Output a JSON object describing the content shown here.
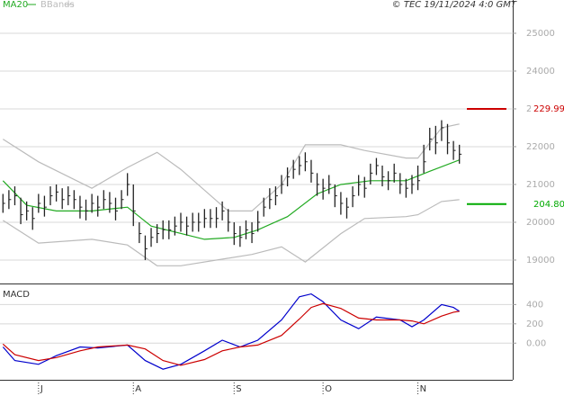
{
  "chart_data": [
    {
      "type": "hlc",
      "note": "© TEC 19/11/2024 4:0 GMT",
      "xlim": [
        -0.5,
        86
      ],
      "ylim": [
        18380,
        25880
      ],
      "yticks": [
        19000,
        20000,
        21000,
        22000,
        23000,
        24000,
        25000
      ],
      "grid": true,
      "bar_color": "#222222",
      "high": [
        20750,
        20850,
        20950,
        20650,
        20550,
        20400,
        20750,
        20700,
        20950,
        21000,
        20900,
        20950,
        20850,
        20700,
        20600,
        20750,
        20700,
        20850,
        20800,
        20650,
        20850,
        21300,
        21000,
        20000,
        19650,
        19850,
        19950,
        20050,
        20050,
        20150,
        20250,
        20150,
        20250,
        20250,
        20350,
        20350,
        20400,
        20550,
        20350,
        20000,
        19900,
        20050,
        20000,
        20300,
        20650,
        20900,
        20950,
        21250,
        21450,
        21650,
        21750,
        21850,
        21650,
        21300,
        21150,
        21250,
        21000,
        20800,
        20650,
        20950,
        21250,
        21200,
        21550,
        21700,
        21500,
        21350,
        21550,
        21300,
        21150,
        21250,
        21500,
        22050,
        22500,
        22550,
        22700,
        22600,
        22150,
        22050
      ],
      "low": [
        20250,
        20350,
        20450,
        19950,
        20050,
        19800,
        20250,
        20150,
        20450,
        20550,
        20350,
        20450,
        20350,
        20100,
        20050,
        20250,
        20150,
        20350,
        20250,
        20050,
        20350,
        20700,
        19900,
        19450,
        19000,
        19350,
        19450,
        19550,
        19550,
        19650,
        19750,
        19650,
        19750,
        19750,
        19850,
        19850,
        19850,
        20050,
        19750,
        19400,
        19350,
        19550,
        19450,
        19750,
        20150,
        20350,
        20450,
        20750,
        20950,
        21150,
        21250,
        21350,
        21050,
        20700,
        20600,
        20750,
        20400,
        20200,
        20100,
        20400,
        20700,
        20650,
        21000,
        21250,
        20950,
        20850,
        21050,
        20750,
        20650,
        20750,
        20850,
        21300,
        21900,
        21800,
        22150,
        21800,
        21650,
        21550
      ],
      "close": [
        20500,
        20600,
        20700,
        20200,
        20300,
        20100,
        20500,
        20400,
        20700,
        20800,
        20600,
        20700,
        20600,
        20400,
        20300,
        20500,
        20400,
        20600,
        20500,
        20300,
        20600,
        21000,
        20300,
        19700,
        19300,
        19600,
        19700,
        19800,
        19800,
        19900,
        20000,
        19900,
        20000,
        20000,
        20100,
        20100,
        20100,
        20300,
        20000,
        19700,
        19600,
        19800,
        19700,
        20000,
        20400,
        20600,
        20700,
        21000,
        21200,
        21400,
        21500,
        21600,
        21300,
        21000,
        20900,
        21000,
        20700,
        20500,
        20400,
        20700,
        21000,
        20900,
        21300,
        21500,
        21200,
        21100,
        21300,
        21000,
        20900,
        21000,
        21100,
        21600,
        22200,
        22100,
        22500,
        22100,
        21900,
        21800
      ],
      "series": [
        {
          "name": "MA20",
          "color": "#22aa22",
          "x": [
            0,
            4,
            9,
            15,
            21,
            25,
            34,
            39,
            43,
            48,
            53,
            57,
            62,
            68,
            72,
            77
          ],
          "values": [
            21100,
            20450,
            20300,
            20300,
            20400,
            19900,
            19550,
            19600,
            19800,
            20150,
            20750,
            21000,
            21100,
            21100,
            21350,
            21650
          ]
        },
        {
          "name": "BBands",
          "color": "#bbbbbb",
          "x": [
            0,
            6,
            15,
            21,
            26,
            30,
            38,
            42,
            47,
            51,
            57,
            61,
            68,
            70,
            74,
            77
          ],
          "values": [
            22200,
            21600,
            20900,
            21450,
            21850,
            21400,
            20300,
            20300,
            21000,
            22050,
            22050,
            21900,
            21700,
            21700,
            22500,
            22600
          ],
          "lower": [
            20050,
            19450,
            19550,
            19400,
            18850,
            18850,
            19050,
            19150,
            19350,
            18950,
            19700,
            20100,
            20150,
            20200,
            20550,
            20600
          ]
        }
      ],
      "levels": [
        {
          "value": 22999,
          "label": "229.99",
          "color": "#cc0000"
        },
        {
          "value": 20480,
          "label": "204.80",
          "color": "#00aa00"
        }
      ]
    },
    {
      "type": "line",
      "title": "MACD",
      "xlim": [
        -0.5,
        86
      ],
      "ylim": [
        -380,
        590
      ],
      "yticks": [
        {
          "value": 0,
          "label": "0.00"
        },
        200,
        400
      ],
      "xticks": [
        {
          "value": 6,
          "label": "J"
        },
        {
          "value": 22,
          "label": "A"
        },
        {
          "value": 39,
          "label": "S"
        },
        {
          "value": 54,
          "label": "O"
        },
        {
          "value": 70,
          "label": "N"
        }
      ],
      "grid": true,
      "x": [
        0,
        2,
        6,
        9,
        13,
        16,
        21,
        24,
        27,
        30,
        34,
        37,
        40,
        43,
        47,
        50,
        52,
        54,
        57,
        60,
        63,
        67,
        69,
        71,
        74,
        76,
        77
      ],
      "series": [
        {
          "color": "#0000cc",
          "values": [
            -40,
            -180,
            -220,
            -130,
            -40,
            -50,
            -20,
            -180,
            -270,
            -220,
            -80,
            30,
            -40,
            30,
            240,
            480,
            510,
            430,
            240,
            150,
            270,
            240,
            170,
            240,
            400,
            370,
            330
          ]
        },
        {
          "color": "#cc0000",
          "values": [
            -10,
            -120,
            -180,
            -150,
            -80,
            -40,
            -20,
            -60,
            -180,
            -230,
            -170,
            -80,
            -40,
            -20,
            80,
            250,
            370,
            410,
            360,
            260,
            240,
            240,
            230,
            200,
            280,
            320,
            330
          ]
        }
      ]
    }
  ]
}
